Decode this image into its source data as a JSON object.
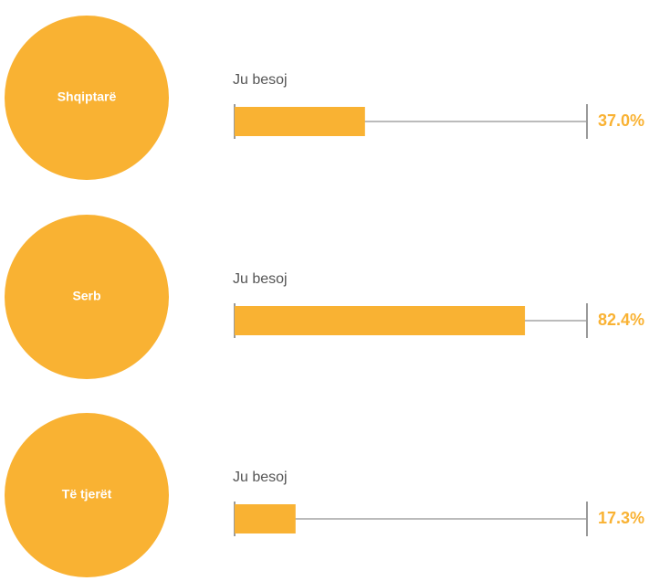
{
  "chart_data": {
    "type": "bar",
    "categories": [
      "Shqiptarë",
      "Serb",
      "Të tjerët"
    ],
    "series": [
      {
        "name": "Ju besoj",
        "color": "#f9b233",
        "values": [
          37.0,
          82.4,
          17.3
        ]
      }
    ],
    "value_labels": [
      "37.0%",
      "82.4%",
      "17.3%"
    ],
    "xlim": [
      0,
      100
    ]
  }
}
